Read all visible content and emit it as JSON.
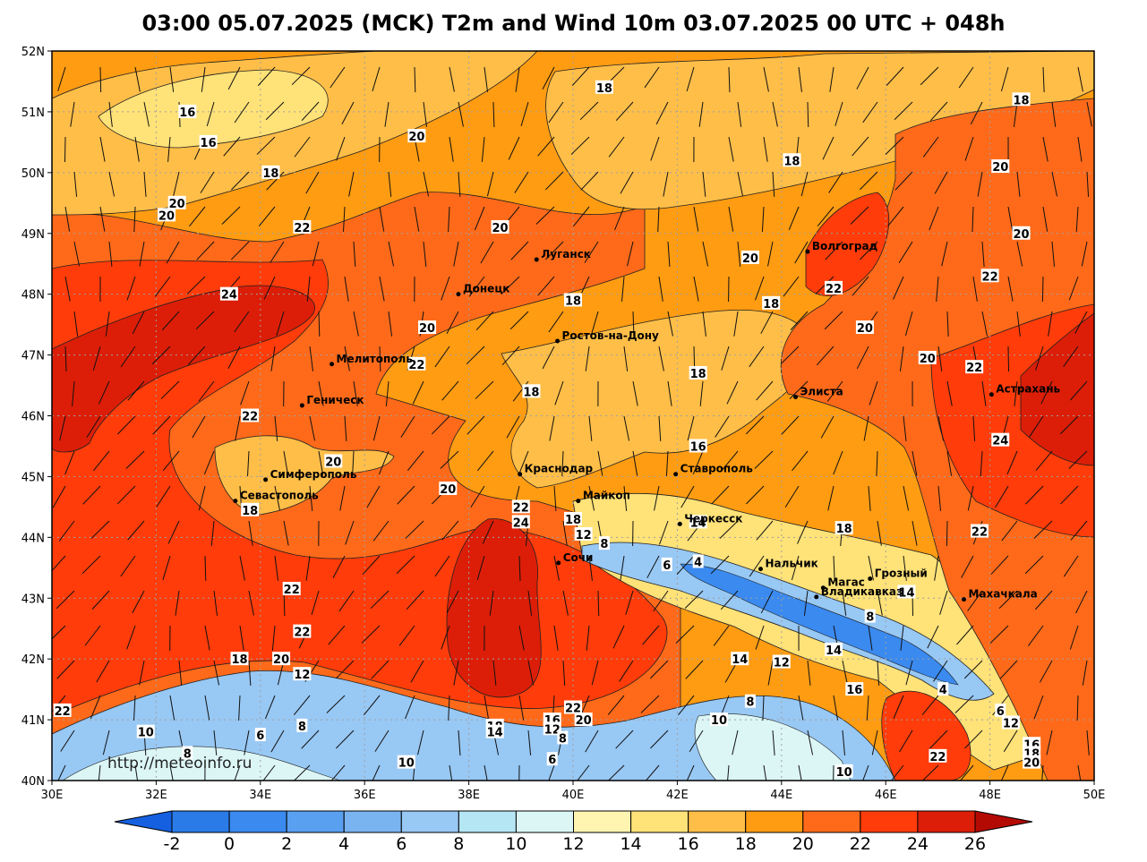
{
  "title": "03:00 05.07.2025 (MCK) T2m and Wind 10m 03.07.2025 00 UTC + 048h",
  "watermark": "http://meteoinfo.ru",
  "lat_ticks": [
    "52N",
    "51N",
    "50N",
    "49N",
    "48N",
    "47N",
    "46N",
    "45N",
    "44N",
    "43N",
    "42N",
    "41N",
    "40N"
  ],
  "lon_ticks": [
    "30E",
    "32E",
    "34E",
    "36E",
    "38E",
    "40E",
    "42E",
    "44E",
    "46E",
    "48E",
    "50E"
  ],
  "map_extent": {
    "lon_min": 30,
    "lon_max": 50,
    "lat_min": 40,
    "lat_max": 52
  },
  "colorbar": {
    "labels": [
      "-2",
      "0",
      "2",
      "4",
      "6",
      "8",
      "10",
      "12",
      "14",
      "16",
      "18",
      "20",
      "22",
      "24",
      "26"
    ],
    "colors": [
      "#2a7be8",
      "#3a8af0",
      "#5aa0f0",
      "#7ab4f0",
      "#98c8f4",
      "#b4e6f4",
      "#dcf6f6",
      "#fff4b0",
      "#ffe278",
      "#ffbe48",
      "#ff9c12",
      "#ff6a1a",
      "#ff3c0a",
      "#dc1e08"
    ],
    "under_color": "#1460e0",
    "over_color": "#b40a04"
  },
  "cities": [
    {
      "name": "Волгоград",
      "lon": 44.5,
      "lat": 48.7
    },
    {
      "name": "Луганск",
      "lon": 39.3,
      "lat": 48.57
    },
    {
      "name": "Донецк",
      "lon": 37.8,
      "lat": 48.0
    },
    {
      "name": "Ростов-на-Дону",
      "lon": 39.7,
      "lat": 47.23
    },
    {
      "name": "Мелитополь",
      "lon": 35.37,
      "lat": 46.85
    },
    {
      "name": "Элиста",
      "lon": 44.27,
      "lat": 46.31
    },
    {
      "name": "Астрахань",
      "lon": 48.03,
      "lat": 46.35
    },
    {
      "name": "Геническ",
      "lon": 34.8,
      "lat": 46.17
    },
    {
      "name": "Симферополь",
      "lon": 34.1,
      "lat": 44.95
    },
    {
      "name": "Севастополь",
      "lon": 33.52,
      "lat": 44.6
    },
    {
      "name": "Краснодар",
      "lon": 38.98,
      "lat": 45.04
    },
    {
      "name": "Ставрополь",
      "lon": 41.97,
      "lat": 45.04
    },
    {
      "name": "Майкоп",
      "lon": 40.1,
      "lat": 44.6
    },
    {
      "name": "Черкесск",
      "lon": 42.05,
      "lat": 44.22
    },
    {
      "name": "Сочи",
      "lon": 39.72,
      "lat": 43.58
    },
    {
      "name": "Нальчик",
      "lon": 43.6,
      "lat": 43.48
    },
    {
      "name": "Магас",
      "lon": 44.8,
      "lat": 43.17
    },
    {
      "name": "Грозный",
      "lon": 45.7,
      "lat": 43.32
    },
    {
      "name": "Владикавказ",
      "lon": 44.67,
      "lat": 43.02
    },
    {
      "name": "Махачкала",
      "lon": 47.5,
      "lat": 42.98
    }
  ],
  "contour_labels": [
    {
      "text": "18",
      "lon": 40.6,
      "lat": 51.4
    },
    {
      "text": "16",
      "lon": 32.6,
      "lat": 51.0
    },
    {
      "text": "16",
      "lon": 33.0,
      "lat": 50.5
    },
    {
      "text": "20",
      "lon": 37.0,
      "lat": 50.6
    },
    {
      "text": "18",
      "lon": 34.2,
      "lat": 50.0
    },
    {
      "text": "18",
      "lon": 44.2,
      "lat": 50.2
    },
    {
      "text": "18",
      "lon": 48.6,
      "lat": 51.2
    },
    {
      "text": "20",
      "lon": 48.2,
      "lat": 50.1
    },
    {
      "text": "20",
      "lon": 32.4,
      "lat": 49.5
    },
    {
      "text": "20",
      "lon": 32.2,
      "lat": 49.3
    },
    {
      "text": "22",
      "lon": 34.8,
      "lat": 49.1
    },
    {
      "text": "20",
      "lon": 38.6,
      "lat": 49.1
    },
    {
      "text": "20",
      "lon": 48.6,
      "lat": 49.0
    },
    {
      "text": "20",
      "lon": 43.4,
      "lat": 48.6
    },
    {
      "text": "24",
      "lon": 33.4,
      "lat": 48.0
    },
    {
      "text": "22",
      "lon": 45.0,
      "lat": 48.1
    },
    {
      "text": "22",
      "lon": 48.0,
      "lat": 48.3
    },
    {
      "text": "18",
      "lon": 40.0,
      "lat": 47.9
    },
    {
      "text": "18",
      "lon": 43.8,
      "lat": 47.85
    },
    {
      "text": "20",
      "lon": 37.2,
      "lat": 47.45
    },
    {
      "text": "20",
      "lon": 45.6,
      "lat": 47.45
    },
    {
      "text": "22",
      "lon": 37.0,
      "lat": 46.85
    },
    {
      "text": "20",
      "lon": 46.8,
      "lat": 46.95
    },
    {
      "text": "22",
      "lon": 47.7,
      "lat": 46.8
    },
    {
      "text": "18",
      "lon": 42.4,
      "lat": 46.7
    },
    {
      "text": "18",
      "lon": 39.2,
      "lat": 46.4
    },
    {
      "text": "22",
      "lon": 33.8,
      "lat": 46.0
    },
    {
      "text": "16",
      "lon": 42.4,
      "lat": 45.5
    },
    {
      "text": "24",
      "lon": 48.2,
      "lat": 45.6
    },
    {
      "text": "20",
      "lon": 35.4,
      "lat": 45.25
    },
    {
      "text": "20",
      "lon": 37.6,
      "lat": 44.8
    },
    {
      "text": "22",
      "lon": 39.0,
      "lat": 44.5
    },
    {
      "text": "24",
      "lon": 39.0,
      "lat": 44.25
    },
    {
      "text": "18",
      "lon": 33.8,
      "lat": 44.45
    },
    {
      "text": "18",
      "lon": 40.0,
      "lat": 44.3
    },
    {
      "text": "12",
      "lon": 40.2,
      "lat": 44.05
    },
    {
      "text": "8",
      "lon": 40.6,
      "lat": 43.9
    },
    {
      "text": "14",
      "lon": 42.4,
      "lat": 44.25
    },
    {
      "text": "18",
      "lon": 45.2,
      "lat": 44.15
    },
    {
      "text": "22",
      "lon": 47.8,
      "lat": 44.1
    },
    {
      "text": "6",
      "lon": 41.8,
      "lat": 43.55
    },
    {
      "text": "4",
      "lon": 42.4,
      "lat": 43.6
    },
    {
      "text": "14",
      "lon": 46.4,
      "lat": 43.1
    },
    {
      "text": "8",
      "lon": 45.7,
      "lat": 42.7
    },
    {
      "text": "22",
      "lon": 34.6,
      "lat": 43.15
    },
    {
      "text": "22",
      "lon": 34.8,
      "lat": 42.45
    },
    {
      "text": "14",
      "lon": 45.0,
      "lat": 42.15
    },
    {
      "text": "14",
      "lon": 43.2,
      "lat": 42.0
    },
    {
      "text": "12",
      "lon": 44.0,
      "lat": 41.95
    },
    {
      "text": "18",
      "lon": 33.6,
      "lat": 42.0
    },
    {
      "text": "20",
      "lon": 34.4,
      "lat": 42.0
    },
    {
      "text": "12",
      "lon": 34.8,
      "lat": 41.75
    },
    {
      "text": "16",
      "lon": 45.4,
      "lat": 41.5
    },
    {
      "text": "4",
      "lon": 47.1,
      "lat": 41.5
    },
    {
      "text": "8",
      "lon": 43.4,
      "lat": 41.3
    },
    {
      "text": "6",
      "lon": 48.2,
      "lat": 41.15
    },
    {
      "text": "12",
      "lon": 48.4,
      "lat": 40.95
    },
    {
      "text": "22",
      "lon": 30.2,
      "lat": 41.15
    },
    {
      "text": "22",
      "lon": 40.0,
      "lat": 41.2
    },
    {
      "text": "20",
      "lon": 40.2,
      "lat": 41.0
    },
    {
      "text": "16",
      "lon": 39.6,
      "lat": 41.0
    },
    {
      "text": "12",
      "lon": 39.6,
      "lat": 40.85
    },
    {
      "text": "18",
      "lon": 38.5,
      "lat": 40.9
    },
    {
      "text": "14",
      "lon": 38.5,
      "lat": 40.8
    },
    {
      "text": "8",
      "lon": 39.8,
      "lat": 40.7
    },
    {
      "text": "10",
      "lon": 31.8,
      "lat": 40.8
    },
    {
      "text": "8",
      "lon": 34.8,
      "lat": 40.9
    },
    {
      "text": "6",
      "lon": 34.0,
      "lat": 40.75
    },
    {
      "text": "8",
      "lon": 32.6,
      "lat": 40.45
    },
    {
      "text": "10",
      "lon": 42.8,
      "lat": 41.0
    },
    {
      "text": "6",
      "lon": 39.6,
      "lat": 40.35
    },
    {
      "text": "10",
      "lon": 36.8,
      "lat": 40.3
    },
    {
      "text": "10",
      "lon": 45.2,
      "lat": 40.15
    },
    {
      "text": "16",
      "lon": 48.8,
      "lat": 40.6
    },
    {
      "text": "18",
      "lon": 48.8,
      "lat": 40.45
    },
    {
      "text": "20",
      "lon": 48.8,
      "lat": 40.3
    },
    {
      "text": "22",
      "lon": 47.0,
      "lat": 40.4
    }
  ]
}
